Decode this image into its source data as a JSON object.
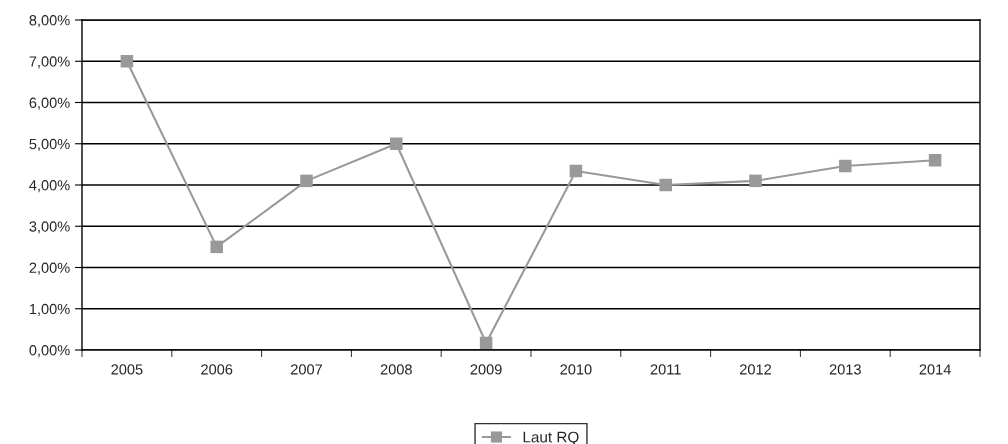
{
  "chart_data": {
    "type": "line",
    "categories": [
      "2005",
      "2006",
      "2007",
      "2008",
      "2009",
      "2010",
      "2011",
      "2012",
      "2013",
      "2014"
    ],
    "series": [
      {
        "name": "Laut RQ",
        "color": "#999999",
        "values": [
          7.0,
          2.5,
          4.1,
          5.0,
          0.17,
          4.34,
          4.0,
          4.1,
          4.46,
          4.6
        ]
      }
    ],
    "ylim": [
      0,
      8
    ],
    "yticks": [
      {
        "value": 0,
        "label": "0,00%"
      },
      {
        "value": 1,
        "label": "1,00%"
      },
      {
        "value": 2,
        "label": "2,00%"
      },
      {
        "value": 3,
        "label": "3,00%"
      },
      {
        "value": 4,
        "label": "4,00%"
      },
      {
        "value": 5,
        "label": "5,00%"
      },
      {
        "value": 6,
        "label": "6,00%"
      },
      {
        "value": 7,
        "label": "7,00%"
      },
      {
        "value": 8,
        "label": "8,00%"
      }
    ],
    "grid": "y",
    "legend": "bottom",
    "marker": "square",
    "line_style": "solid"
  }
}
